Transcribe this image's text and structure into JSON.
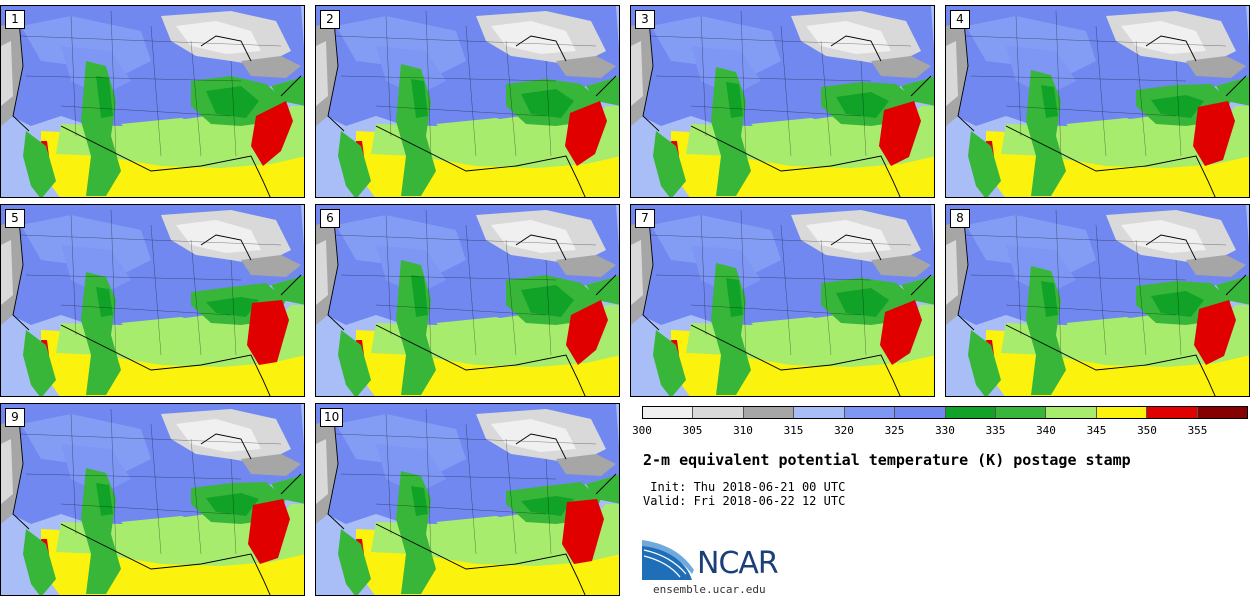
{
  "panels": [
    {
      "label": "1"
    },
    {
      "label": "2"
    },
    {
      "label": "3"
    },
    {
      "label": "4"
    },
    {
      "label": "5"
    },
    {
      "label": "6"
    },
    {
      "label": "7"
    },
    {
      "label": "8"
    },
    {
      "label": "9"
    },
    {
      "label": "10"
    }
  ],
  "colorbar": {
    "colors": [
      "#f0f0f0",
      "#d9d9d9",
      "#a6a6a6",
      "#a9bef7",
      "#7e97f4",
      "#7088f0",
      "#10a327",
      "#38b63a",
      "#a8ec6e",
      "#fbf20e",
      "#e10000",
      "#870000"
    ],
    "ticks": [
      "300",
      "305",
      "310",
      "315",
      "320",
      "325",
      "330",
      "335",
      "340",
      "345",
      "350",
      "355"
    ]
  },
  "title": "2-m equivalent potential temperature (K) postage stamp",
  "init": " Init: Thu 2018-06-21 00 UTC",
  "valid": "Valid: Fri 2018-06-22 12 UTC",
  "logo": {
    "text": "NCAR",
    "color": "#1a3f7a",
    "swoosh": "#2d7ec4"
  },
  "site": "ensemble.ucar.edu"
}
